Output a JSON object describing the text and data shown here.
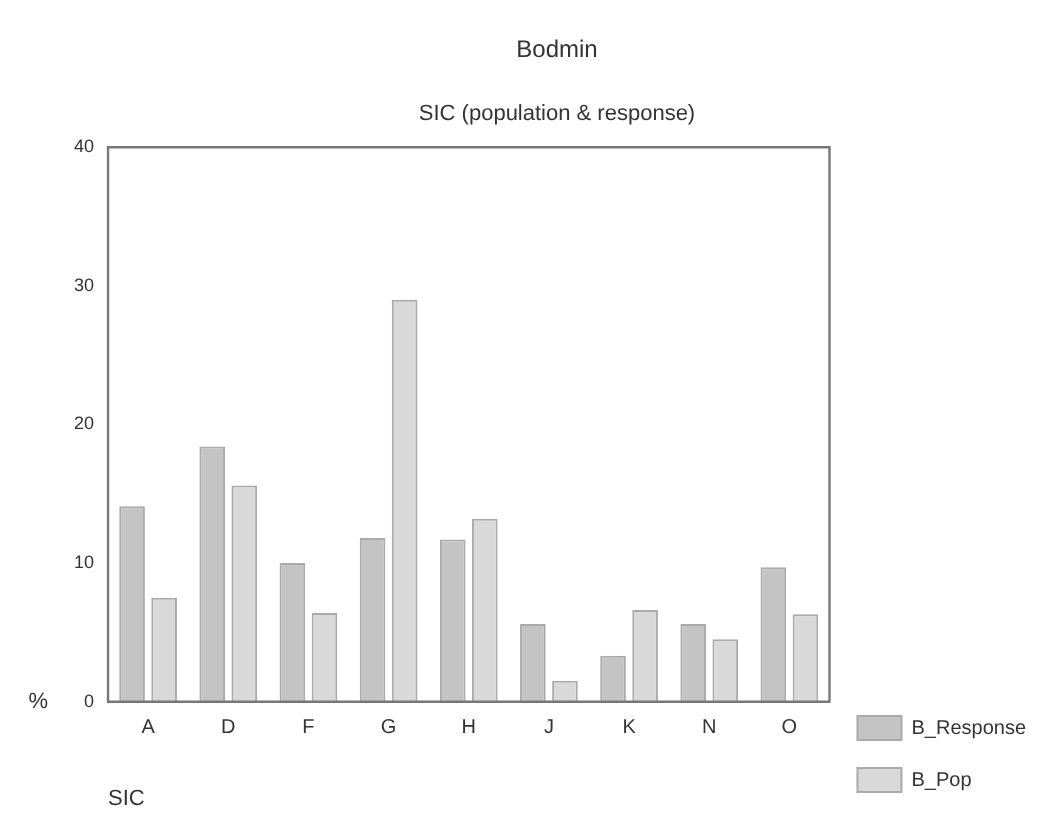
{
  "chart_data": {
    "type": "bar",
    "title": "Bodmin",
    "subtitle": "SIC (population & response)",
    "xlabel": "SIC",
    "ylabel": "%",
    "categories": [
      "A",
      "D",
      "F",
      "G",
      "H",
      "J",
      "K",
      "N",
      "O"
    ],
    "series": [
      {
        "name": "B_Response",
        "color": "#c4c4c4",
        "values": [
          14.1,
          18.4,
          10,
          11.8,
          11.7,
          5.6,
          3.3,
          5.6,
          9.7
        ]
      },
      {
        "name": "B_Pop",
        "color": "#d9d9d9",
        "values": [
          7.5,
          15.6,
          6.4,
          29,
          13.2,
          1.5,
          6.6,
          4.5,
          6.3
        ]
      }
    ],
    "ylim": [
      0,
      40
    ],
    "yticks": [
      0,
      10,
      20,
      30,
      40
    ],
    "grid": false,
    "legend": "right"
  }
}
